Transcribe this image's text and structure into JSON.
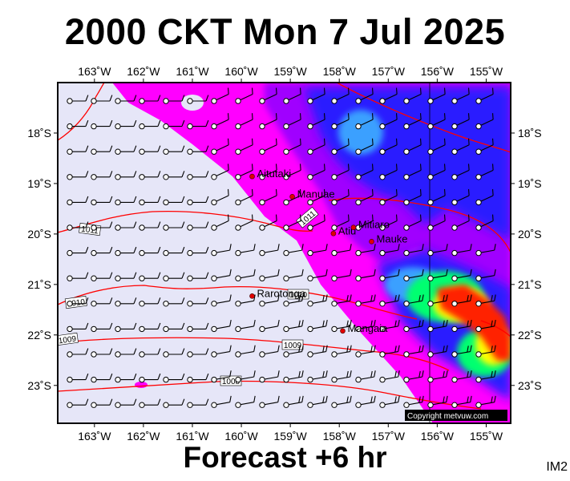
{
  "title": "2000 CKT Mon 7 Jul 2025",
  "footer": "Forecast +6 hr",
  "corner_tag": "IM2",
  "copyright": "Copyright metvuw.com",
  "colors": {
    "land_fill": "#e6e6f8",
    "isobar": "#ff0000",
    "frame": "#000000",
    "place_marker": "#e00000"
  },
  "lon_ticks": [
    "163˚W",
    "162˚W",
    "161˚W",
    "160˚W",
    "159˚W",
    "158˚W",
    "157˚W",
    "156˚W",
    "155˚W"
  ],
  "lat_ticks": [
    "18˚S",
    "19˚S",
    "20˚S",
    "21˚S",
    "22˚S",
    "23˚S"
  ],
  "places": [
    {
      "name": "Aitutaki",
      "lon": -159.78,
      "lat": -18.86
    },
    {
      "name": "Manuae",
      "lon": -158.96,
      "lat": -19.26
    },
    {
      "name": "Atiu",
      "lon": -158.12,
      "lat": -19.99
    },
    {
      "name": "Mitiaro",
      "lon": -157.71,
      "lat": -19.87
    },
    {
      "name": "Mauke",
      "lon": -157.34,
      "lat": -20.15
    },
    {
      "name": "Rarotonga",
      "lon": -159.78,
      "lat": -21.23
    },
    {
      "name": "Mangaia",
      "lon": -157.93,
      "lat": -21.92
    }
  ],
  "isobar_labels": [
    "1011",
    "1011",
    "1010",
    "1010",
    "1009",
    "1009",
    "1008"
  ],
  "rain_levels": [
    {
      "name": "light",
      "color": "#ff00ff"
    },
    {
      "name": "moderate",
      "color": "#a000ff"
    },
    {
      "name": "heavy",
      "color": "#2a1cff"
    },
    {
      "name": "very-heavy",
      "color": "#3aa0ff"
    },
    {
      "name": "intense",
      "color": "#00ff70"
    },
    {
      "name": "extreme",
      "color": "#ffff00"
    },
    {
      "name": "severe",
      "color": "#ff2000"
    }
  ]
}
